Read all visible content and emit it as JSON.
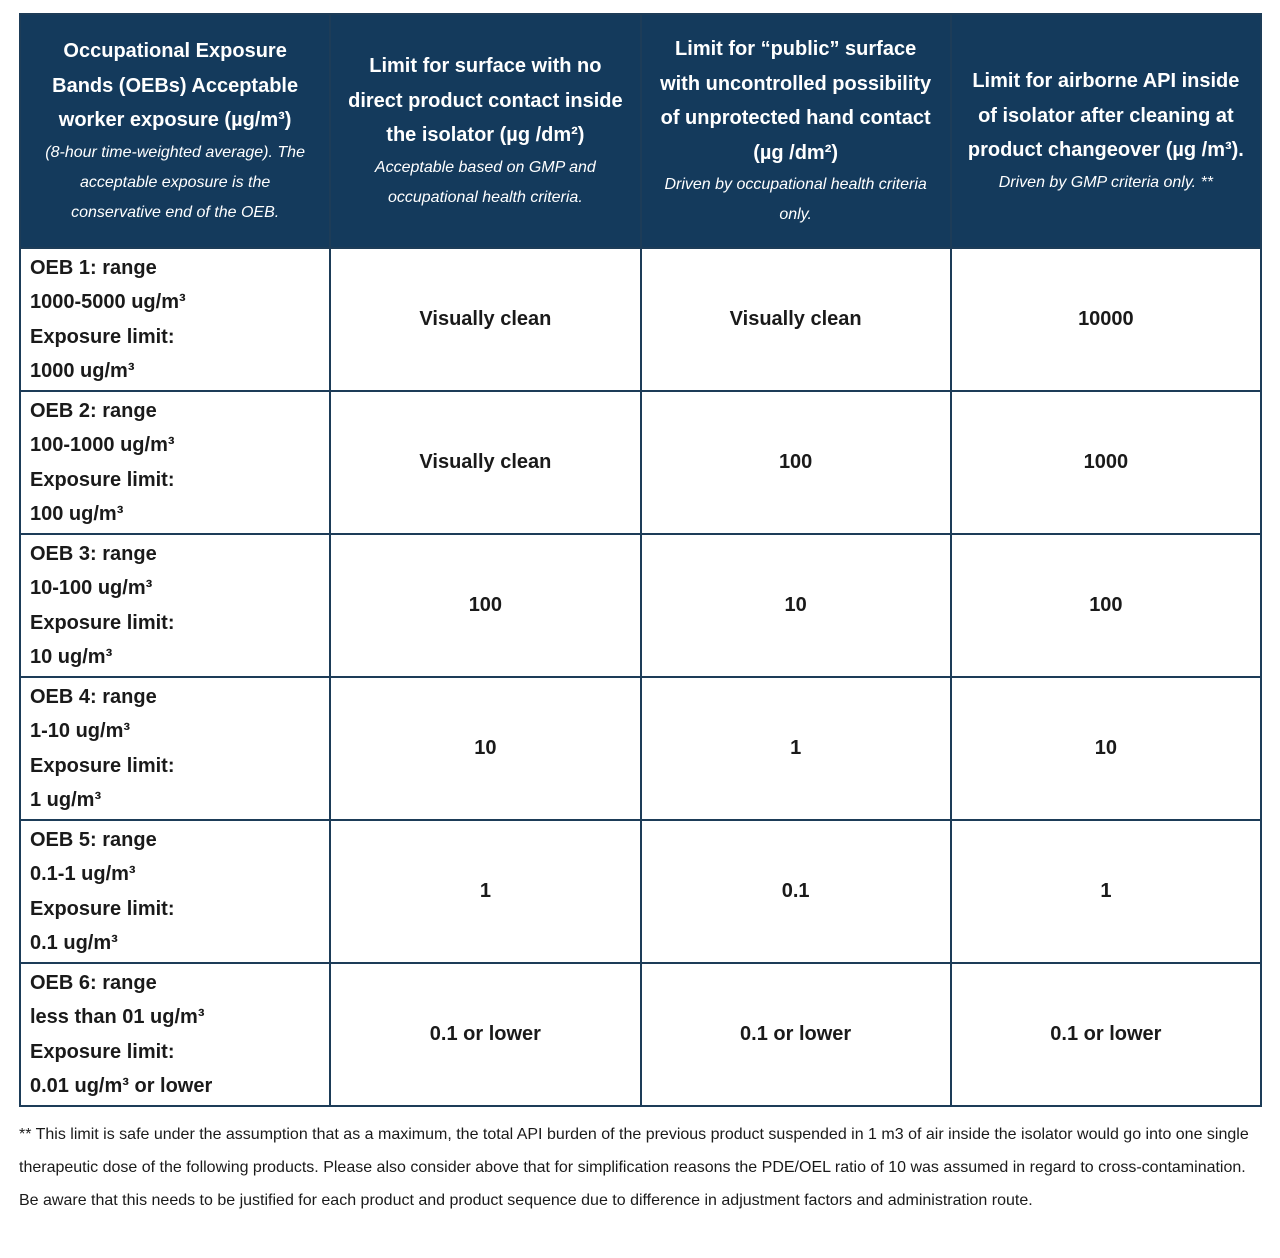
{
  "table": {
    "header": [
      {
        "title": "Occupational Exposure Bands (OEBs) Acceptable worker exposure (µg/m³)",
        "note": "(8-hour time-weighted average). The acceptable exposure is the conservative end of the OEB."
      },
      {
        "title": "Limit for surface with no direct product contact inside the isolator (µg /dm²)",
        "note": "Acceptable based on GMP and occupational health criteria."
      },
      {
        "title": "Limit for “public” surface with uncontrolled possibility of unprotected hand contact (µg /dm²)",
        "note": "Driven by occupational health criteria only."
      },
      {
        "title": "Limit for airborne API inside of isolator after cleaning at product changeover (µg /m³).",
        "note": "Driven by GMP criteria only. **"
      }
    ],
    "rows": [
      {
        "band": [
          "OEB 1: range",
          "1000-5000 ug/m³",
          "Exposure limit:",
          "1000 ug/m³"
        ],
        "values": [
          "Visually clean",
          "Visually clean",
          "10000"
        ]
      },
      {
        "band": [
          "OEB 2: range",
          "100-1000 ug/m³",
          "Exposure limit:",
          "100 ug/m³"
        ],
        "values": [
          "Visually clean",
          "100",
          "1000"
        ]
      },
      {
        "band": [
          "OEB 3: range",
          "10-100 ug/m³",
          "Exposure limit:",
          "10 ug/m³"
        ],
        "values": [
          "100",
          "10",
          "100"
        ]
      },
      {
        "band": [
          "OEB 4: range",
          "1-10 ug/m³",
          "Exposure limit:",
          "1 ug/m³"
        ],
        "values": [
          "10",
          "1",
          "10"
        ]
      },
      {
        "band": [
          "OEB 5: range",
          "0.1-1 ug/m³",
          "Exposure limit:",
          "0.1 ug/m³"
        ],
        "values": [
          "1",
          "0.1",
          "1"
        ]
      },
      {
        "band": [
          "OEB 6: range",
          "less than 01 ug/m³",
          "Exposure limit:",
          "0.01 ug/m³ or lower"
        ],
        "values": [
          "0.1 or lower",
          "0.1 or lower",
          "0.1 or lower"
        ]
      }
    ]
  },
  "footnote": "** This limit is safe under the assumption that as a maximum, the total API burden of the previous product suspended in 1 m3 of air inside the isolator would go into one single therapeutic dose of the following products. Please also consider above that for simplification reasons the PDE/OEL ratio of 10 was assumed in regard to cross-contamination. Be aware that this needs to be justified for each product and product sequence due to difference in adjustment factors and administration route."
}
